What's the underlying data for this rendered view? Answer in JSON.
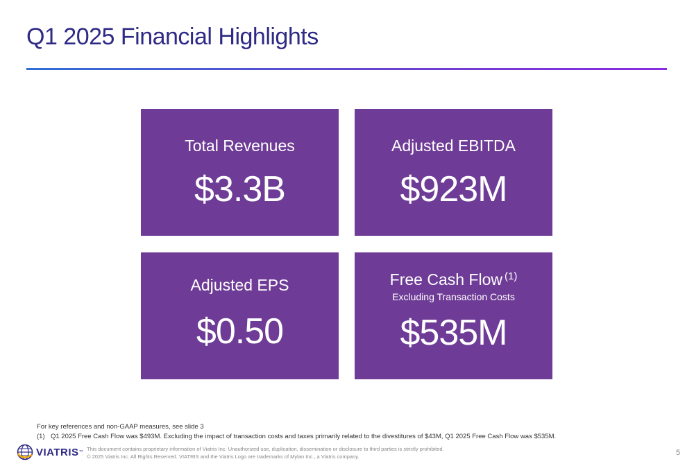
{
  "slide": {
    "title": "Q1 2025 Financial Highlights",
    "page_number": "5"
  },
  "tiles": [
    {
      "label": "Total Revenues",
      "value": "$3.3B"
    },
    {
      "label": "Adjusted EBITDA",
      "value": "$923M"
    },
    {
      "label": "Adjusted EPS",
      "value": "$0.50"
    },
    {
      "label": "Free Cash Flow",
      "superscript": "(1)",
      "sublabel": "Excluding Transaction Costs",
      "value": "$535M"
    }
  ],
  "footnotes": {
    "key_refs": "For key references and non-GAAP measures, see slide 3",
    "note1_marker": "(1)",
    "note1_text": "Q1 2025 Free Cash Flow was $493M. Excluding the impact of transaction costs and taxes primarily related to the divestitures of $43M, Q1 2025 Free Cash Flow was $535M."
  },
  "footer": {
    "logo_text": "VIATRIS",
    "logo_tm": "™",
    "legal_line1": "This document contains proprietary information of Viatris Inc. Unauthorized use, duplication, dissemination or disclosure to third parties is strictly prohibited.",
    "legal_line2": "© 2025 Viatris Inc. All Rights Reserved. VIATRIS and the Viatris Logo are trademarks of Mylan Inc., a Viatris company."
  },
  "colors": {
    "title": "#2e2a85",
    "tile_background": "#6e3c96",
    "rule_start": "#2f6fd6",
    "rule_end": "#8a2be2"
  },
  "icons": {
    "logo": "viatris-globe-icon"
  }
}
